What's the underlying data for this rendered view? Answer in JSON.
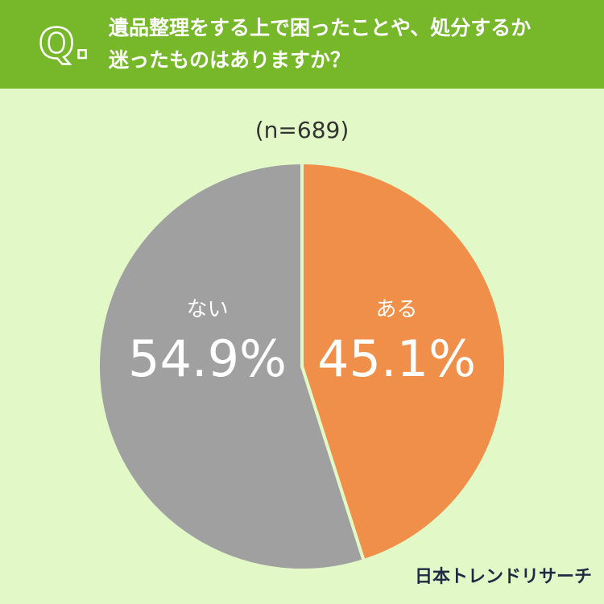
{
  "chart_data": {
    "type": "pie",
    "badge": "Q.",
    "title": [
      "遺品整理をする上で困ったことや、処分するか",
      "迷ったものはありますか？"
    ],
    "subtitle": "(n=689)",
    "categories": [
      "ある",
      "ない"
    ],
    "values": [
      45.1,
      54.9
    ],
    "value_labels": [
      "45.1%",
      "54.9%"
    ],
    "colors": [
      "#f08f49",
      "#a0a0a0"
    ],
    "source": "日本トレンドリサーチ"
  }
}
